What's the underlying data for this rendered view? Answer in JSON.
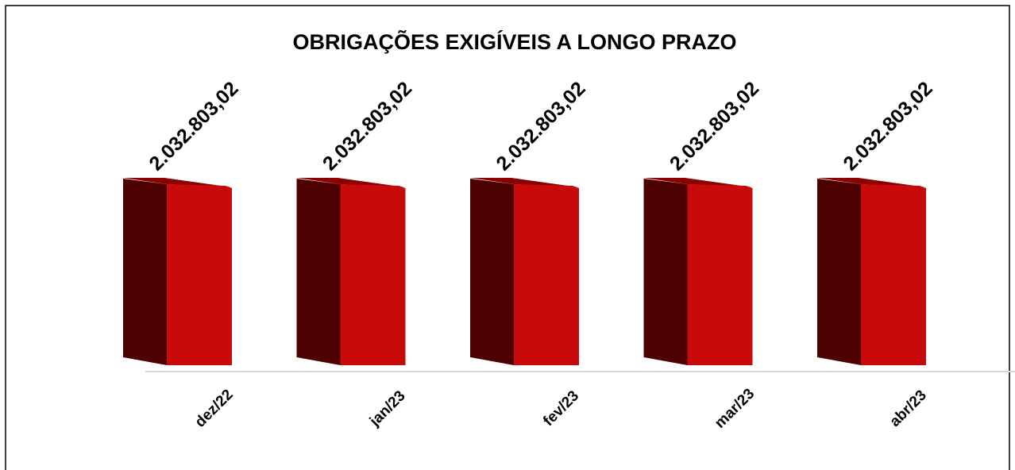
{
  "chart_data": {
    "type": "bar3d",
    "title": "OBRIGAÇÕES EXIGÍVEIS A LONGO PRAZO",
    "categories": [
      "dez/22",
      "jan/23",
      "fev/23",
      "mar/23",
      "abr/23"
    ],
    "values": [
      2032803.02,
      2032803.02,
      2032803.02,
      2032803.02,
      2032803.02
    ],
    "value_labels": [
      "2.032.803,02",
      "2.032.803,02",
      "2.032.803,02",
      "2.032.803,02",
      "2.032.803,02"
    ],
    "color": "#c80a0a"
  }
}
